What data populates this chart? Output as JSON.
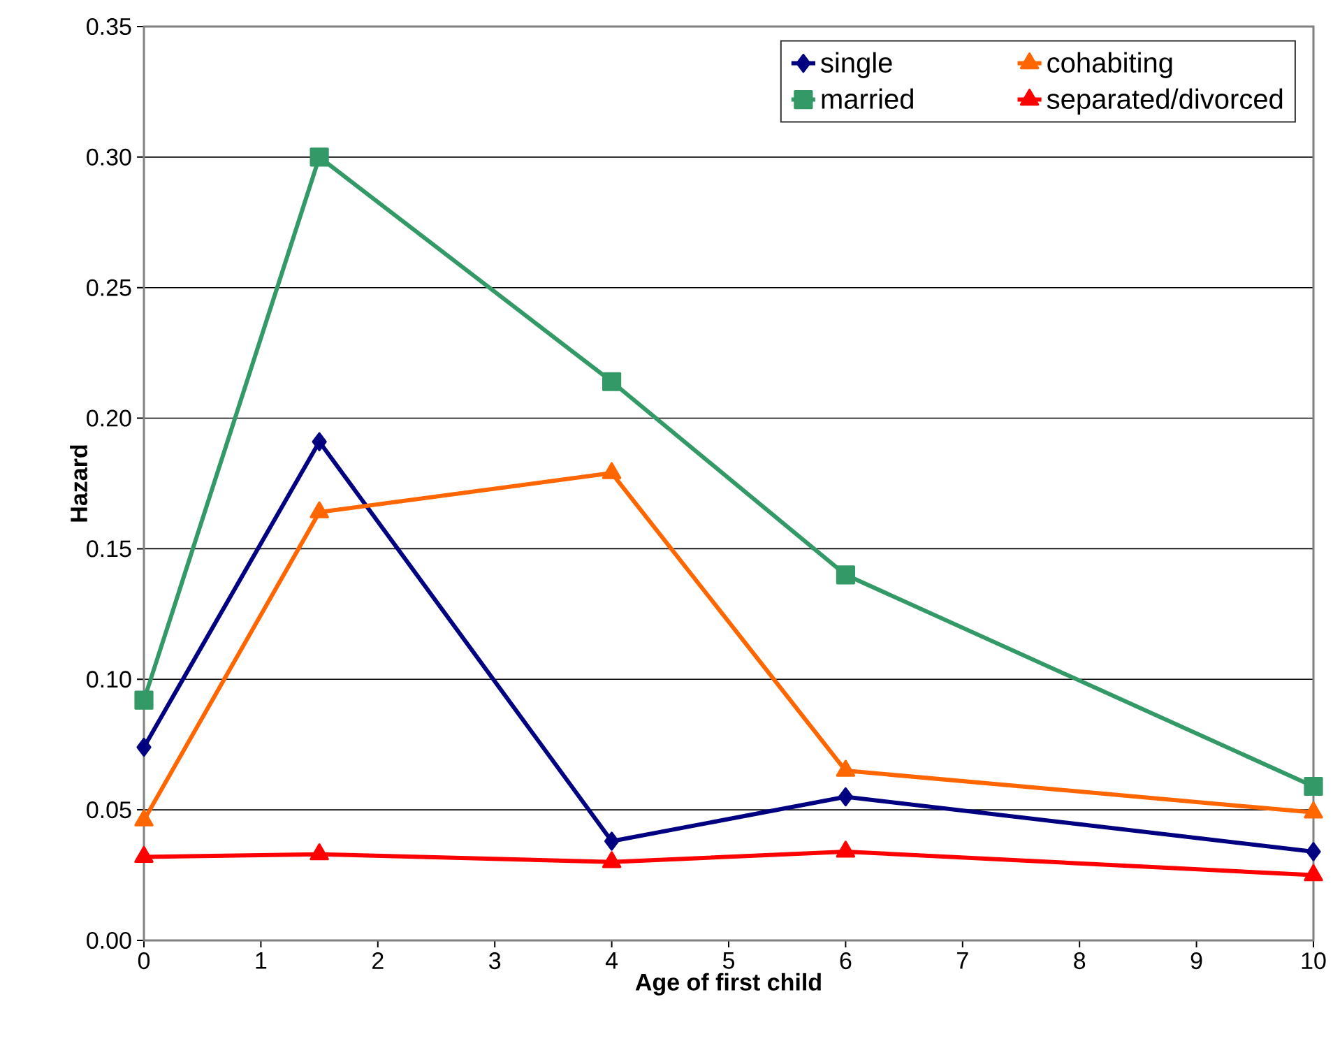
{
  "chart_data": {
    "type": "line",
    "xlabel": "Age of first child",
    "ylabel": "Hazard",
    "x": [
      0,
      1.5,
      4,
      6,
      10
    ],
    "series": [
      {
        "name": "single",
        "color": "#000080",
        "marker": "diamond",
        "values": [
          0.074,
          0.191,
          0.038,
          0.055,
          0.034
        ]
      },
      {
        "name": "cohabiting",
        "color": "#ff6600",
        "marker": "triangle",
        "values": [
          0.046,
          0.164,
          0.179,
          0.065,
          0.049
        ]
      },
      {
        "name": "married",
        "color": "#339966",
        "marker": "square",
        "values": [
          0.092,
          0.3,
          0.214,
          0.14,
          0.059
        ]
      },
      {
        "name": "separated/divorced",
        "color": "#ff0000",
        "marker": "triangle",
        "values": [
          0.032,
          0.033,
          0.03,
          0.034,
          0.025
        ]
      }
    ],
    "xlim": [
      0,
      10
    ],
    "xticks": [
      0,
      1,
      2,
      3,
      4,
      5,
      6,
      7,
      8,
      9,
      10
    ],
    "ylim": [
      0,
      0.35
    ],
    "yticks": [
      {
        "value": 0,
        "label": "0.00"
      },
      {
        "value": 0.05,
        "label": "0.05"
      },
      {
        "value": 0.1,
        "label": "0.10"
      },
      {
        "value": 0.15,
        "label": "0.15"
      },
      {
        "value": 0.2,
        "label": "0.20"
      },
      {
        "value": 0.25,
        "label": "0.25"
      },
      {
        "value": 0.3,
        "label": "0.30"
      },
      {
        "value": 0.35,
        "label": "0.35"
      }
    ],
    "grid": "y",
    "legend": "top right",
    "line_style": "solid"
  }
}
